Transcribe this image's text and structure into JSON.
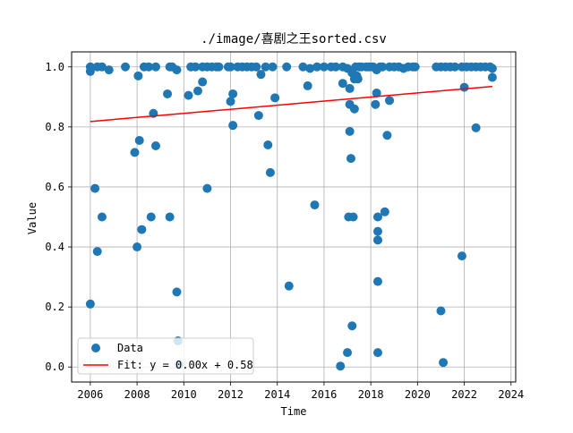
{
  "chart_data": {
    "type": "scatter",
    "title": "./image/喜剧之王sorted.csv",
    "xlabel": "Time",
    "ylabel": "Value",
    "xlim": [
      2005.2,
      2024.2
    ],
    "ylim": [
      -0.05,
      1.05
    ],
    "grid": true,
    "legend_position": "lower-left",
    "x_ticks": [
      2006,
      2008,
      2010,
      2012,
      2014,
      2016,
      2018,
      2020,
      2022,
      2024
    ],
    "y_ticks": [
      0.0,
      0.2,
      0.4,
      0.6,
      0.8,
      1.0
    ],
    "x_tick_labels": [
      "2006",
      "2008",
      "2010",
      "2012",
      "2014",
      "2016",
      "2018",
      "2020",
      "2022",
      "2024"
    ],
    "y_tick_labels": [
      "0.0",
      "0.2",
      "0.4",
      "0.6",
      "0.8",
      "1.0"
    ],
    "colors": {
      "data": "#1f77b4",
      "fit": "#ff0000",
      "grid": "#b0b0b0"
    },
    "series": [
      {
        "name": "Data",
        "kind": "scatter",
        "points": [
          [
            2006.0,
            1.0
          ],
          [
            2006.0,
            0.985
          ],
          [
            2006.0,
            0.21
          ],
          [
            2006.2,
            0.595
          ],
          [
            2006.3,
            1.0
          ],
          [
            2006.3,
            0.385
          ],
          [
            2006.5,
            1.0
          ],
          [
            2006.5,
            0.5
          ],
          [
            2006.8,
            0.99
          ],
          [
            2007.5,
            1.0
          ],
          [
            2007.9,
            0.715
          ],
          [
            2008.0,
            0.4
          ],
          [
            2008.05,
            0.97
          ],
          [
            2008.1,
            0.755
          ],
          [
            2008.2,
            0.458
          ],
          [
            2008.3,
            1.0
          ],
          [
            2008.5,
            1.0
          ],
          [
            2008.6,
            0.5
          ],
          [
            2008.7,
            0.845
          ],
          [
            2008.8,
            0.737
          ],
          [
            2008.8,
            1.0
          ],
          [
            2009.3,
            0.91
          ],
          [
            2009.4,
            1.0
          ],
          [
            2009.4,
            0.5
          ],
          [
            2009.5,
            1.0
          ],
          [
            2009.7,
            0.99
          ],
          [
            2009.7,
            0.25
          ],
          [
            2009.75,
            0.087
          ],
          [
            2009.8,
            0.008
          ],
          [
            2010.2,
            0.905
          ],
          [
            2010.3,
            1.0
          ],
          [
            2010.5,
            1.0
          ],
          [
            2010.6,
            0.92
          ],
          [
            2010.8,
            0.95
          ],
          [
            2010.8,
            1.0
          ],
          [
            2011.0,
            1.0
          ],
          [
            2011.0,
            0.595
          ],
          [
            2011.2,
            1.0
          ],
          [
            2011.4,
            1.0
          ],
          [
            2011.5,
            1.0
          ],
          [
            2011.9,
            1.0
          ],
          [
            2012.0,
            1.0
          ],
          [
            2012.0,
            0.885
          ],
          [
            2012.1,
            0.91
          ],
          [
            2012.1,
            0.805
          ],
          [
            2012.3,
            1.0
          ],
          [
            2012.5,
            1.0
          ],
          [
            2012.7,
            1.0
          ],
          [
            2012.9,
            1.0
          ],
          [
            2013.1,
            1.0
          ],
          [
            2013.2,
            0.838
          ],
          [
            2013.3,
            0.975
          ],
          [
            2013.5,
            1.0
          ],
          [
            2013.6,
            0.74
          ],
          [
            2013.7,
            0.648
          ],
          [
            2013.8,
            1.0
          ],
          [
            2013.9,
            0.897
          ],
          [
            2014.4,
            1.0
          ],
          [
            2014.5,
            0.27
          ],
          [
            2015.1,
            1.0
          ],
          [
            2015.3,
            0.937
          ],
          [
            2015.4,
            0.995
          ],
          [
            2015.6,
            0.54
          ],
          [
            2015.7,
            1.0
          ],
          [
            2016.0,
            1.0
          ],
          [
            2016.3,
            1.0
          ],
          [
            2016.5,
            1.0
          ],
          [
            2016.7,
            0.003
          ],
          [
            2016.8,
            1.0
          ],
          [
            2016.8,
            0.945
          ],
          [
            2017.0,
            0.995
          ],
          [
            2017.0,
            0.048
          ],
          [
            2017.05,
            0.5
          ],
          [
            2017.1,
            0.928
          ],
          [
            2017.1,
            0.875
          ],
          [
            2017.1,
            0.785
          ],
          [
            2017.15,
            0.695
          ],
          [
            2017.2,
            0.98
          ],
          [
            2017.2,
            0.137
          ],
          [
            2017.25,
            0.5
          ],
          [
            2017.3,
            0.96
          ],
          [
            2017.3,
            0.86
          ],
          [
            2017.35,
            1.0
          ],
          [
            2017.4,
            0.97
          ],
          [
            2017.45,
            0.96
          ],
          [
            2017.5,
            1.0
          ],
          [
            2017.6,
            1.0
          ],
          [
            2017.8,
            1.0
          ],
          [
            2017.9,
            1.0
          ],
          [
            2018.0,
            1.0
          ],
          [
            2018.1,
            1.0
          ],
          [
            2018.2,
            0.875
          ],
          [
            2018.25,
            0.99
          ],
          [
            2018.25,
            0.913
          ],
          [
            2018.3,
            0.5
          ],
          [
            2018.3,
            0.452
          ],
          [
            2018.3,
            0.423
          ],
          [
            2018.3,
            0.285
          ],
          [
            2018.3,
            0.048
          ],
          [
            2018.4,
            1.0
          ],
          [
            2018.5,
            1.0
          ],
          [
            2018.6,
            0.517
          ],
          [
            2018.7,
            0.772
          ],
          [
            2018.8,
            0.888
          ],
          [
            2018.8,
            1.0
          ],
          [
            2019.0,
            1.0
          ],
          [
            2019.2,
            1.0
          ],
          [
            2019.4,
            0.995
          ],
          [
            2019.6,
            1.0
          ],
          [
            2019.8,
            1.0
          ],
          [
            2019.9,
            1.0
          ],
          [
            2020.8,
            1.0
          ],
          [
            2021.0,
            1.0
          ],
          [
            2021.0,
            0.187
          ],
          [
            2021.1,
            0.015
          ],
          [
            2021.2,
            1.0
          ],
          [
            2021.4,
            1.0
          ],
          [
            2021.6,
            1.0
          ],
          [
            2021.9,
            1.0
          ],
          [
            2021.9,
            0.37
          ],
          [
            2022.0,
            0.932
          ],
          [
            2022.1,
            1.0
          ],
          [
            2022.3,
            1.0
          ],
          [
            2022.5,
            0.797
          ],
          [
            2022.5,
            1.0
          ],
          [
            2022.7,
            1.0
          ],
          [
            2022.9,
            1.0
          ],
          [
            2023.1,
            1.0
          ],
          [
            2023.2,
            0.995
          ],
          [
            2023.2,
            0.965
          ]
        ]
      },
      {
        "name": "Fit: y = 0.00x + 0.58",
        "kind": "line",
        "x": [
          2006.0,
          2023.2
        ],
        "y": [
          0.818,
          0.935
        ]
      }
    ]
  }
}
